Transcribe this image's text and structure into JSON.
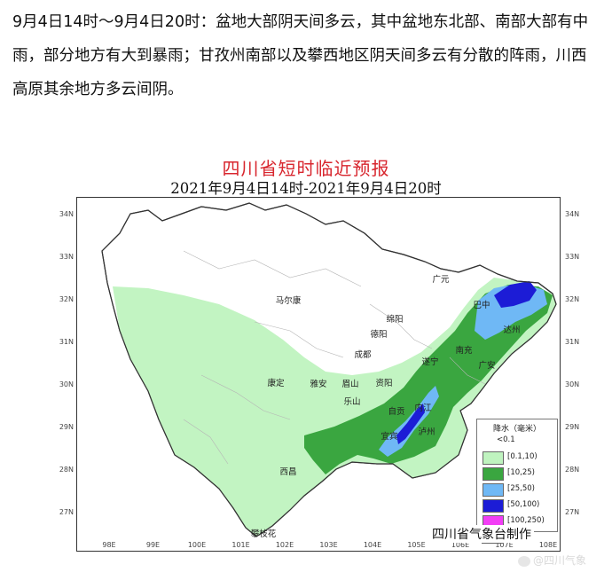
{
  "description": "9月4日14时～9月4日20时：盆地大部阴天间多云，其中盆地东北部、南部大部有中雨，部分地方有大到暴雨；甘孜州南部以及攀西地区阴天间多云有分散的阵雨，川西高原其余地方多云间阴。",
  "map": {
    "title": "四川省短时临近预报",
    "subtitle": "2021年9月4日14时-2021年9月4日20时",
    "lat_labels": [
      "34N",
      "33N",
      "32N",
      "31N",
      "30N",
      "29N",
      "28N",
      "27N"
    ],
    "lon_labels": [
      "98E",
      "99E",
      "100E",
      "101E",
      "102E",
      "103E",
      "104E",
      "105E",
      "106E",
      "107E",
      "108E"
    ],
    "cities": [
      "广元",
      "巴中",
      "马尔康",
      "绵阳",
      "德阳",
      "达州",
      "南充",
      "成都",
      "遂宁",
      "广安",
      "康定",
      "雅安",
      "眉山",
      "资阳",
      "乐山",
      "内江",
      "自贡",
      "宜宾",
      "泸州",
      "西昌",
      "攀枝花"
    ]
  },
  "legend": {
    "title": "降水（毫米）",
    "items": [
      {
        "label": "<0.1",
        "color": "#ffffff"
      },
      {
        "label": "[0.1,10)",
        "color": "#bff3bf"
      },
      {
        "label": "[10,25)",
        "color": "#3aa640"
      },
      {
        "label": "[25,50)",
        "color": "#6fb8f5"
      },
      {
        "label": "[50,100)",
        "color": "#1c1cd6"
      },
      {
        "label": "[100,250)",
        "color": "#f23ef5"
      },
      {
        "label": "",
        "color": "#7a1e4f"
      }
    ]
  },
  "credit": "四川省气象台制作",
  "watermark": "@四川气象"
}
